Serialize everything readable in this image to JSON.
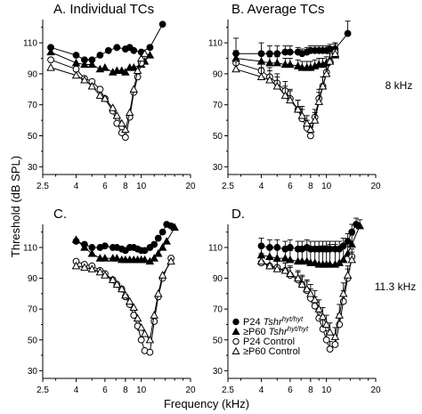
{
  "figure": {
    "y_axis_title": "Threshold (dB SPL)",
    "x_axis_title": "Frequency (kHz)",
    "annotations": [
      "8 kHz",
      "11.3 kHz"
    ],
    "legend": [
      {
        "series": "p24_mut",
        "marker": "filled-circle",
        "prefix": "P24 ",
        "italic": "Tshr",
        "sup": "hyt/hyt"
      },
      {
        "series": "p60_mut",
        "marker": "filled-triangle",
        "prefix": "≥P60 ",
        "italic": "Tshr",
        "sup": "hyt/hyt"
      },
      {
        "series": "p24_ctrl",
        "marker": "open-circle",
        "prefix": "P24 Control",
        "italic": "",
        "sup": ""
      },
      {
        "series": "p60_ctrl",
        "marker": "open-triangle",
        "prefix": "≥P60 Control",
        "italic": "",
        "sup": ""
      }
    ]
  },
  "chart_data": [
    {
      "type": "line",
      "panel": "A",
      "title": "A.   Individual TCs",
      "x_scale": "log",
      "xlim": [
        2.5,
        20
      ],
      "ylim": [
        25,
        125
      ],
      "x_ticks": [
        "2.5",
        "4",
        "6",
        "8",
        "10",
        "20"
      ],
      "y_ticks": [
        "30",
        "50",
        "70",
        "90",
        "110"
      ],
      "series": [
        {
          "id": "p24_mut",
          "marker": "filled-circle",
          "x": [
            2.8,
            4,
            4.5,
            5,
            5.6,
            6.3,
            7.1,
            8,
            8.5,
            9,
            10,
            11.3,
            13.5
          ],
          "y": [
            107,
            102,
            99,
            99,
            102,
            105,
            107,
            106,
            107,
            105,
            104,
            107,
            122
          ]
        },
        {
          "id": "p60_mut",
          "marker": "filled-triangle",
          "x": [
            2.8,
            4,
            4.5,
            5,
            5.6,
            6,
            6.7,
            7.1,
            7.6,
            8,
            8.5,
            9,
            10,
            10.5,
            11.3
          ],
          "y": [
            104,
            97,
            96,
            96,
            93,
            94,
            91,
            92,
            92,
            91,
            94,
            94,
            96,
            98,
            102
          ]
        },
        {
          "id": "p24_ctrl",
          "marker": "open-circle",
          "x": [
            2.8,
            4,
            4.5,
            5,
            5.6,
            6,
            6.7,
            7.1,
            7.6,
            8,
            8.5,
            9,
            9.5,
            10
          ],
          "y": [
            99,
            93,
            87,
            85,
            80,
            74,
            66,
            58,
            52,
            49,
            62,
            78,
            88,
            97
          ]
        },
        {
          "id": "p60_ctrl",
          "marker": "open-triangle",
          "x": [
            2.8,
            4,
            4.5,
            5,
            5.6,
            6,
            6.7,
            7.1,
            7.6,
            8,
            8.5,
            9,
            9.5,
            10,
            10.5
          ],
          "y": [
            94,
            89,
            86,
            82,
            76,
            74,
            68,
            63,
            58,
            54,
            65,
            80,
            92,
            100,
            103
          ]
        }
      ]
    },
    {
      "type": "line",
      "panel": "B",
      "title": "B.   Average TCs",
      "x_scale": "log",
      "xlim": [
        2.5,
        20
      ],
      "ylim": [
        25,
        125
      ],
      "x_ticks": [
        "2.5",
        "4",
        "6",
        "8",
        "10",
        "20"
      ],
      "y_ticks": [
        "30",
        "50",
        "70",
        "90",
        "110"
      ],
      "series": [
        {
          "id": "p24_mut",
          "marker": "filled-circle",
          "x": [
            2.8,
            4,
            4.5,
            5,
            5.6,
            6,
            6.7,
            7.1,
            7.6,
            8,
            8.5,
            9,
            9.5,
            10,
            10.5,
            11.3,
            13.5
          ],
          "y": [
            103,
            103,
            103,
            103,
            104,
            104,
            104,
            103,
            104,
            105,
            105,
            105,
            105,
            105,
            106,
            106,
            116
          ],
          "yerr": [
            10,
            7,
            5,
            5,
            4,
            4,
            3,
            3,
            3,
            3,
            3,
            3,
            3,
            3,
            3,
            4,
            8
          ]
        },
        {
          "id": "p60_mut",
          "marker": "filled-triangle",
          "x": [
            2.8,
            4,
            4.5,
            5,
            5.6,
            6,
            6.7,
            7.1,
            7.6,
            8,
            8.5,
            9,
            9.5,
            10,
            10.5,
            11.3
          ],
          "y": [
            100,
            98,
            97,
            97,
            96,
            96,
            95,
            94,
            94,
            94,
            95,
            96,
            96,
            97,
            99,
            102
          ],
          "yerr": [
            5,
            4,
            4,
            4,
            4,
            4,
            4,
            4,
            4,
            4,
            4,
            4,
            4,
            4,
            4,
            4
          ]
        },
        {
          "id": "p24_ctrl",
          "marker": "open-circle",
          "x": [
            2.8,
            4,
            4.5,
            5,
            5.6,
            6,
            6.7,
            7.1,
            7.6,
            8,
            8.5,
            9,
            9.5,
            10,
            10.5,
            11.3
          ],
          "y": [
            97,
            92,
            88,
            84,
            79,
            74,
            67,
            61,
            55,
            50,
            62,
            74,
            82,
            91,
            98,
            104
          ],
          "yerr": [
            5,
            6,
            6,
            6,
            6,
            6,
            6,
            6,
            5,
            4,
            5,
            6,
            6,
            6,
            6,
            6
          ]
        },
        {
          "id": "p60_ctrl",
          "marker": "open-triangle",
          "x": [
            2.8,
            4,
            4.5,
            5,
            5.6,
            6,
            6.7,
            7.1,
            7.6,
            8,
            8.5,
            9,
            9.5,
            10,
            10.5,
            11.3
          ],
          "y": [
            93,
            88,
            86,
            82,
            76,
            73,
            67,
            63,
            58,
            54,
            60,
            72,
            82,
            90,
            98,
            103
          ],
          "yerr": [
            5,
            6,
            6,
            6,
            6,
            6,
            6,
            6,
            5,
            4,
            5,
            6,
            6,
            6,
            6,
            6
          ]
        }
      ]
    },
    {
      "type": "line",
      "panel": "C",
      "title": "C.",
      "x_scale": "log",
      "xlim": [
        2.5,
        20
      ],
      "ylim": [
        25,
        125
      ],
      "x_ticks": [
        "2.5",
        "4",
        "6",
        "8",
        "10",
        "20"
      ],
      "y_ticks": [
        "30",
        "50",
        "70",
        "90",
        "110"
      ],
      "series": [
        {
          "id": "p24_mut",
          "marker": "filled-circle",
          "x": [
            4,
            4.5,
            5,
            5.6,
            6,
            6.7,
            7.1,
            7.6,
            8,
            8.5,
            9,
            9.5,
            10,
            10.5,
            11.3,
            12,
            12.7,
            13.5,
            14.3,
            15.2
          ],
          "y": [
            114,
            112,
            110,
            110,
            111,
            110,
            110,
            109,
            108,
            110,
            110,
            109,
            108,
            108,
            110,
            112,
            116,
            120,
            125,
            124
          ]
        },
        {
          "id": "p60_mut",
          "marker": "filled-triangle",
          "x": [
            4,
            4.5,
            5,
            5.6,
            6,
            6.7,
            7.1,
            7.6,
            8,
            8.5,
            9,
            9.5,
            10,
            10.5,
            11.3,
            12,
            12.7,
            13.5,
            14.3,
            16
          ],
          "y": [
            115,
            110,
            106,
            103,
            103,
            103,
            103,
            102,
            102,
            102,
            102,
            102,
            102,
            102,
            101,
            103,
            106,
            110,
            114,
            123
          ]
        },
        {
          "id": "p24_ctrl",
          "marker": "open-circle",
          "x": [
            4,
            4.5,
            5,
            5.6,
            6,
            6.7,
            7.1,
            7.6,
            8,
            8.5,
            9,
            9.5,
            10,
            10.5,
            11.3,
            12,
            12.7,
            13.5,
            15.2
          ],
          "y": [
            101,
            99,
            98,
            95,
            93,
            89,
            86,
            83,
            78,
            73,
            66,
            59,
            50,
            43,
            42,
            62,
            78,
            90,
            103
          ]
        },
        {
          "id": "p60_ctrl",
          "marker": "open-triangle",
          "x": [
            4,
            4.5,
            5,
            5.6,
            6,
            6.7,
            7.1,
            7.6,
            8,
            8.5,
            9,
            9.5,
            10,
            10.5,
            11.3,
            12,
            12.7,
            13.5,
            15.2
          ],
          "y": [
            98,
            97,
            96,
            94,
            92,
            89,
            86,
            83,
            79,
            75,
            71,
            64,
            58,
            54,
            50,
            66,
            80,
            92,
            101
          ]
        }
      ]
    },
    {
      "type": "line",
      "panel": "D",
      "title": "D.",
      "x_scale": "log",
      "xlim": [
        2.5,
        20
      ],
      "ylim": [
        25,
        125
      ],
      "x_ticks": [
        "2.5",
        "4",
        "6",
        "8",
        "10",
        "20"
      ],
      "y_ticks": [
        "30",
        "50",
        "70",
        "90",
        "110"
      ],
      "series": [
        {
          "id": "p24_mut",
          "marker": "filled-circle",
          "x": [
            4,
            4.5,
            5,
            5.6,
            6,
            6.7,
            7.1,
            7.6,
            8,
            8.5,
            9,
            9.5,
            10,
            10.5,
            11.3,
            12,
            12.7,
            13.5,
            14.3,
            15.2
          ],
          "y": [
            111,
            110,
            110,
            109,
            110,
            109,
            109,
            110,
            109,
            109,
            109,
            109,
            109,
            109,
            109,
            109,
            111,
            114,
            120,
            125
          ],
          "yerr": [
            5,
            5,
            5,
            5,
            5,
            5,
            5,
            5,
            5,
            5,
            5,
            5,
            5,
            5,
            5,
            5,
            5,
            5,
            5,
            4
          ]
        },
        {
          "id": "p60_mut",
          "marker": "filled-triangle",
          "x": [
            4,
            4.5,
            5,
            5.6,
            6,
            6.7,
            7.1,
            7.6,
            8,
            8.5,
            9,
            9.5,
            10,
            10.5,
            11.3,
            12,
            12.7,
            13.5,
            14.3,
            16
          ],
          "y": [
            105,
            104,
            103,
            103,
            102,
            101,
            101,
            101,
            100,
            100,
            99,
            99,
            99,
            99,
            99,
            100,
            102,
            106,
            112,
            124
          ],
          "yerr": [
            5,
            5,
            6,
            6,
            6,
            7,
            7,
            8,
            9,
            10,
            10,
            12,
            12,
            13,
            13,
            10,
            8,
            7,
            6,
            4
          ]
        },
        {
          "id": "p24_ctrl",
          "marker": "open-circle",
          "x": [
            4,
            4.5,
            5,
            5.6,
            6,
            6.7,
            7.1,
            7.6,
            8,
            8.5,
            9,
            9.5,
            10,
            10.5,
            11.3,
            12,
            12.7,
            13.5,
            14.3
          ],
          "y": [
            100,
            98,
            97,
            95,
            92,
            89,
            86,
            82,
            77,
            72,
            64,
            57,
            50,
            44,
            47,
            60,
            75,
            90,
            104
          ],
          "yerr": [
            5,
            5,
            5,
            5,
            5,
            5,
            5,
            6,
            6,
            6,
            6,
            6,
            6,
            5,
            6,
            7,
            7,
            6,
            5
          ]
        },
        {
          "id": "p60_ctrl",
          "marker": "open-triangle",
          "x": [
            4,
            4.5,
            5,
            5.6,
            6,
            6.7,
            7.1,
            7.6,
            8,
            8.5,
            9,
            9.5,
            10,
            10.5,
            11.3,
            12,
            12.7,
            13.5,
            14.3
          ],
          "y": [
            101,
            98,
            96,
            95,
            93,
            90,
            86,
            83,
            80,
            76,
            70,
            65,
            60,
            55,
            52,
            66,
            80,
            92,
            102
          ],
          "yerr": [
            5,
            5,
            5,
            5,
            5,
            5,
            6,
            6,
            6,
            6,
            6,
            6,
            6,
            6,
            6,
            7,
            7,
            6,
            5
          ]
        }
      ]
    }
  ]
}
